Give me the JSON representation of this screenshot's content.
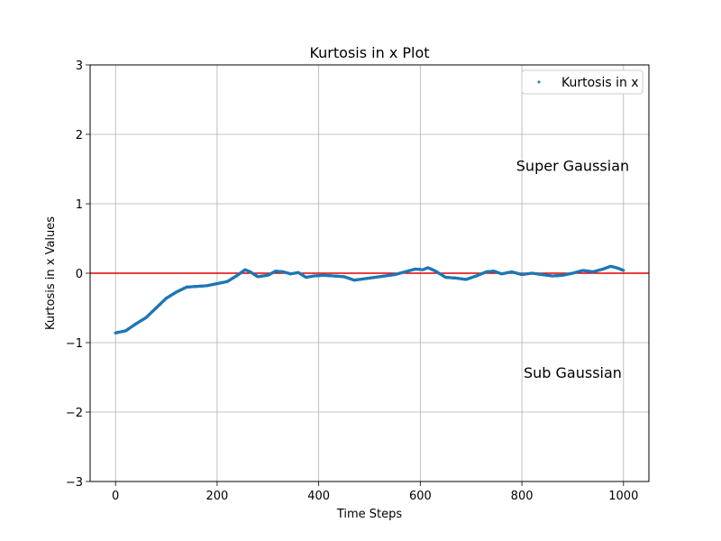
{
  "chart_data": {
    "type": "scatter",
    "title": "Kurtosis in x Plot",
    "xlabel": "Time Steps",
    "ylabel": "Kurtosis in x Values",
    "xlim": [
      -50,
      1050
    ],
    "ylim": [
      -3,
      3
    ],
    "x_ticks": [
      0,
      200,
      400,
      600,
      800,
      1000
    ],
    "y_ticks": [
      -3,
      -2,
      -1,
      0,
      1,
      2,
      3
    ],
    "x_tick_labels": [
      "0",
      "200",
      "400",
      "600",
      "800",
      "1000"
    ],
    "y_tick_labels": [
      "−3",
      "−2",
      "−1",
      "0",
      "1",
      "2",
      "3"
    ],
    "grid": true,
    "legend_position": "top-right",
    "series": [
      {
        "name": "Kurtosis in x",
        "color": "#1f77b4",
        "marker": "dot",
        "keypoints": [
          [
            0,
            -0.86
          ],
          [
            20,
            -0.83
          ],
          [
            40,
            -0.73
          ],
          [
            60,
            -0.64
          ],
          [
            80,
            -0.5
          ],
          [
            100,
            -0.36
          ],
          [
            120,
            -0.27
          ],
          [
            140,
            -0.2
          ],
          [
            160,
            -0.19
          ],
          [
            180,
            -0.18
          ],
          [
            200,
            -0.15
          ],
          [
            220,
            -0.12
          ],
          [
            240,
            -0.03
          ],
          [
            255,
            0.05
          ],
          [
            265,
            0.02
          ],
          [
            280,
            -0.05
          ],
          [
            300,
            -0.03
          ],
          [
            315,
            0.03
          ],
          [
            330,
            0.02
          ],
          [
            345,
            -0.01
          ],
          [
            360,
            0.01
          ],
          [
            375,
            -0.06
          ],
          [
            390,
            -0.04
          ],
          [
            410,
            -0.03
          ],
          [
            430,
            -0.04
          ],
          [
            450,
            -0.05
          ],
          [
            470,
            -0.1
          ],
          [
            490,
            -0.08
          ],
          [
            510,
            -0.06
          ],
          [
            530,
            -0.04
          ],
          [
            550,
            -0.02
          ],
          [
            570,
            0.02
          ],
          [
            590,
            0.06
          ],
          [
            605,
            0.05
          ],
          [
            615,
            0.08
          ],
          [
            630,
            0.03
          ],
          [
            650,
            -0.06
          ],
          [
            670,
            -0.07
          ],
          [
            690,
            -0.09
          ],
          [
            710,
            -0.04
          ],
          [
            730,
            0.02
          ],
          [
            745,
            0.03
          ],
          [
            760,
            -0.01
          ],
          [
            780,
            0.02
          ],
          [
            800,
            -0.02
          ],
          [
            820,
            0.0
          ],
          [
            840,
            -0.02
          ],
          [
            860,
            -0.04
          ],
          [
            880,
            -0.03
          ],
          [
            900,
            0.0
          ],
          [
            920,
            0.04
          ],
          [
            940,
            0.02
          ],
          [
            960,
            0.06
          ],
          [
            975,
            0.1
          ],
          [
            990,
            0.07
          ],
          [
            1000,
            0.04
          ]
        ]
      }
    ],
    "reference_line": {
      "y": 0,
      "color": "#e00000"
    },
    "annotations": [
      {
        "text": "Super Gaussian",
        "x": 900,
        "y": 1.55
      },
      {
        "text": "Sub Gaussian",
        "x": 900,
        "y": -1.43
      }
    ]
  }
}
